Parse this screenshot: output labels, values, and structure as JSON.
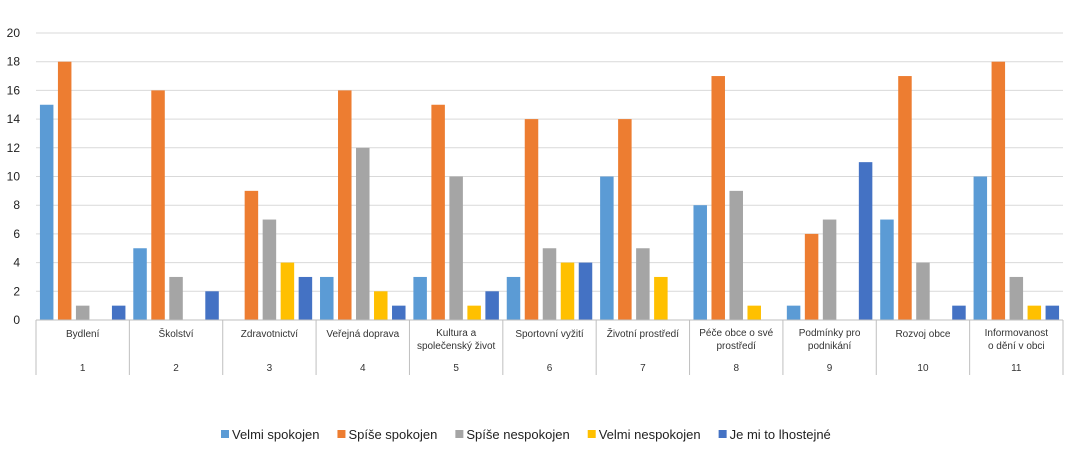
{
  "chart_data": {
    "type": "bar",
    "categories": [
      {
        "label": [
          "Bydlení"
        ],
        "num": "1"
      },
      {
        "label": [
          "Školství"
        ],
        "num": "2"
      },
      {
        "label": [
          "Zdravotnictví"
        ],
        "num": "3"
      },
      {
        "label": [
          "Veřejná doprava"
        ],
        "num": "4"
      },
      {
        "label": [
          "Kultura a",
          "společenský život"
        ],
        "num": "5"
      },
      {
        "label": [
          "Sportovní vyžití"
        ],
        "num": "6"
      },
      {
        "label": [
          "Životní prostředí"
        ],
        "num": "7"
      },
      {
        "label": [
          "Péče obce o své",
          "prostředí"
        ],
        "num": "8"
      },
      {
        "label": [
          "Podmínky pro",
          "podnikání"
        ],
        "num": "9"
      },
      {
        "label": [
          "Rozvoj obce"
        ],
        "num": "10"
      },
      {
        "label": [
          "Informovanost",
          "o dění v obci"
        ],
        "num": "11"
      }
    ],
    "series": [
      {
        "name": "Velmi spokojen",
        "color": "#5B9BD5",
        "values": [
          15,
          5,
          0,
          3,
          3,
          3,
          10,
          8,
          1,
          7,
          10
        ]
      },
      {
        "name": "Spíše spokojen",
        "color": "#ED7D31",
        "values": [
          18,
          16,
          9,
          16,
          15,
          14,
          14,
          17,
          6,
          17,
          18
        ]
      },
      {
        "name": "Spíše nespokojen",
        "color": "#A5A5A5",
        "values": [
          1,
          3,
          7,
          12,
          10,
          5,
          5,
          9,
          7,
          4,
          3
        ]
      },
      {
        "name": "Velmi nespokojen",
        "color": "#FFC000",
        "values": [
          0,
          0,
          4,
          2,
          1,
          4,
          3,
          1,
          0,
          0,
          1
        ]
      },
      {
        "name": "Je mi to lhostejné",
        "color": "#4472C4",
        "values": [
          1,
          2,
          3,
          1,
          2,
          4,
          0,
          0,
          11,
          1,
          1
        ]
      }
    ],
    "ylim": [
      0,
      20
    ],
    "yticks": [
      0,
      2,
      4,
      6,
      8,
      10,
      12,
      14,
      16,
      18,
      20
    ],
    "grid": true,
    "legend": "bottom"
  }
}
